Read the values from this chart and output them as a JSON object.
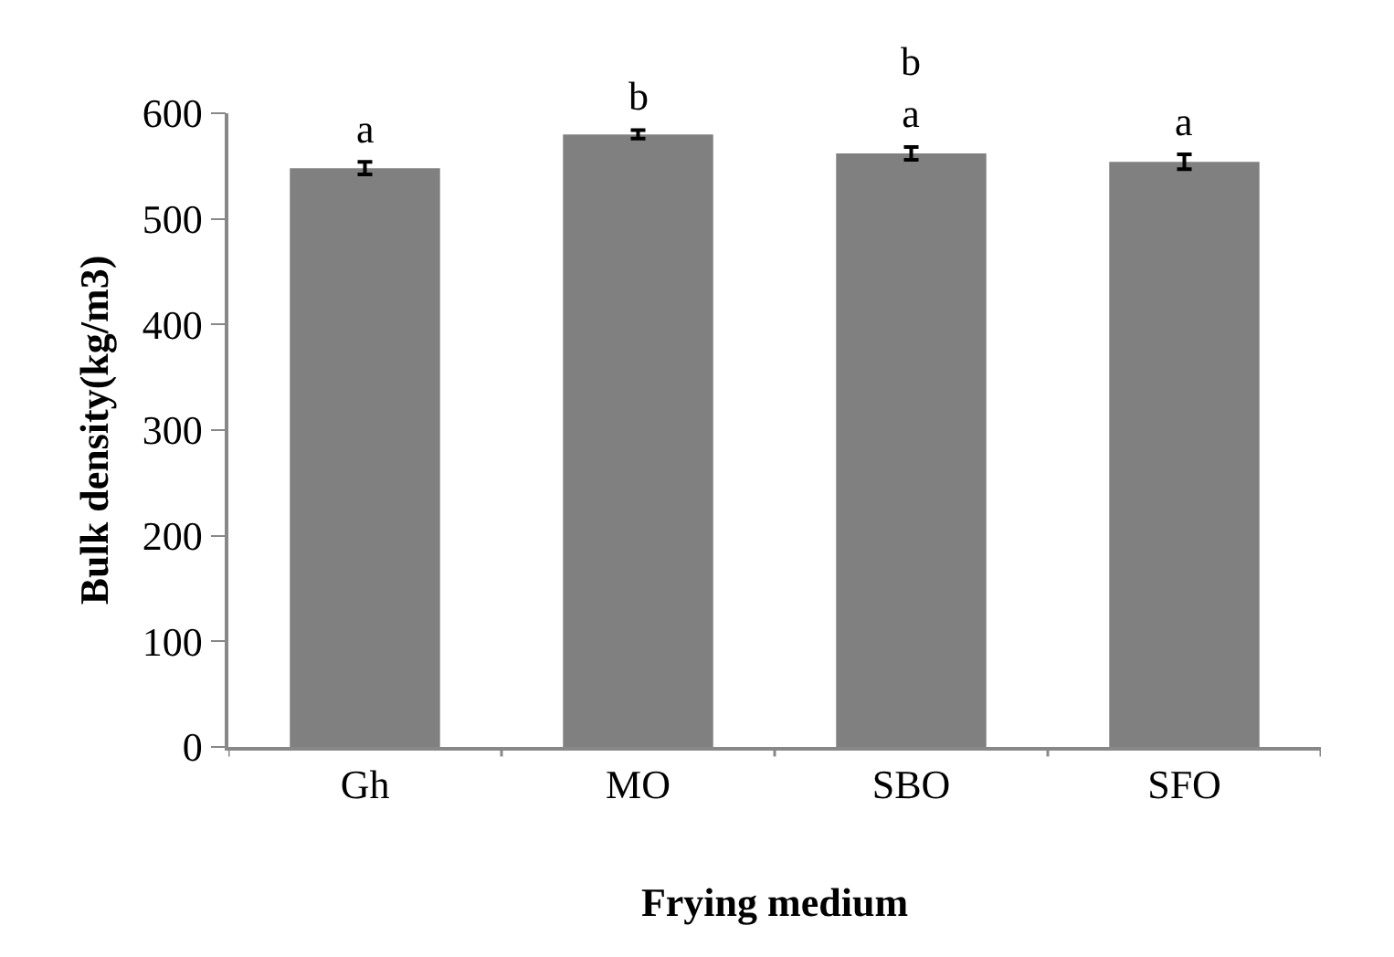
{
  "chart_data": {
    "type": "bar",
    "xlabel": "Frying medium",
    "ylabel": "Bulk density(kg/m3)",
    "categories": [
      "Gh",
      "MO",
      "SBO",
      "SFO"
    ],
    "values": [
      548,
      580,
      562,
      554
    ],
    "errors": [
      6,
      4,
      6,
      7
    ],
    "color": "#808080",
    "ylim": [
      0,
      600
    ],
    "yticks": [
      0,
      100,
      200,
      300,
      400,
      500,
      600
    ],
    "legend": false,
    "annotations": [
      "a",
      "b",
      "b\na",
      "a"
    ]
  }
}
